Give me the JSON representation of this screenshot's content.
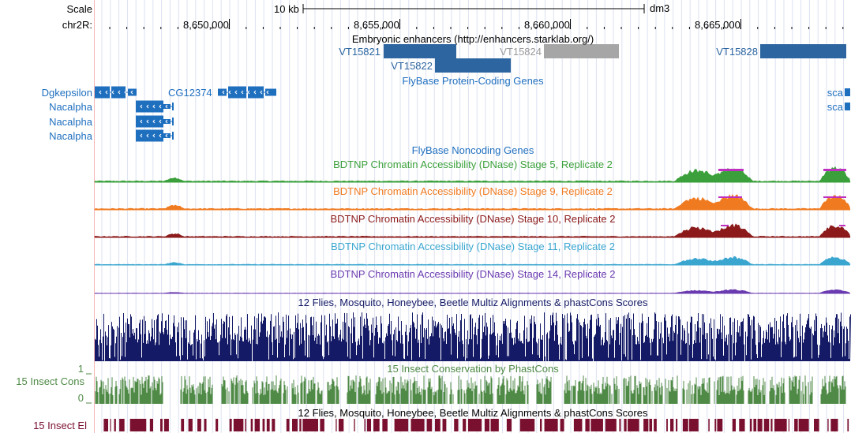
{
  "header": {
    "scale_label": "Scale",
    "scale_bar_label": "10 kb",
    "assembly": "dm3",
    "chrom_label": "chr2R:",
    "positions": [
      "8,650,000",
      "8,655,000",
      "8,660,000",
      "8,665,000"
    ]
  },
  "enhancers": {
    "title": "Embryonic enhancers (http://enhancers.starklab.org/)",
    "items": [
      {
        "label": "VT15821",
        "color": "#2c65a0"
      },
      {
        "label": "VT15822",
        "color": "#2c65a0"
      },
      {
        "label": "VT15824",
        "color": "#a6a6a6"
      },
      {
        "label": "VT15828",
        "color": "#2c65a0"
      }
    ]
  },
  "genes": {
    "title": "FlyBase Protein-Coding Genes",
    "left_labels": [
      "Dgkepsilon",
      "Nacalpha",
      "Nacalpha",
      "Nacalpha"
    ],
    "cg_label": "CG12374",
    "right_labels": [
      "sca",
      "sca"
    ],
    "color": "#1f6fbf"
  },
  "noncoding": {
    "title": "FlyBase Noncoding Genes"
  },
  "dnase_tracks": [
    {
      "title": "BDTNP Chromatin Accessibility (DNase) Stage 5, Replicate 2",
      "color": "#3ba03b"
    },
    {
      "title": "BDTNP Chromatin Accessibility (DNase) Stage 9, Replicate 2",
      "color": "#f07a1f"
    },
    {
      "title": "BDTNP Chromatin Accessibility (DNase) Stage 10, Replicate 2",
      "color": "#8c1a1a"
    },
    {
      "title": "BDTNP Chromatin Accessibility (DNase) Stage 11, Replicate 2",
      "color": "#3aa6d0"
    },
    {
      "title": "BDTNP Chromatin Accessibility (DNase) Stage 14, Replicate 2",
      "color": "#6a3ab0"
    }
  ],
  "multiz": {
    "title": "12 Flies, Mosquito, Honeybee, Beetle Multiz Alignments & phastCons Scores",
    "color": "#141a66"
  },
  "phastcons": {
    "title": "15 Insect Conservation by PhastCons",
    "side_label": "15 Insect Cons",
    "axis_max": "1",
    "axis_min": "0",
    "color": "#4f8a46"
  },
  "elements": {
    "title": "12 Flies, Mosquito, Honeybee, Beetle Multiz Alignments & phastCons Scores",
    "side_label": "15 Insect El",
    "color": "#7a1030"
  }
}
